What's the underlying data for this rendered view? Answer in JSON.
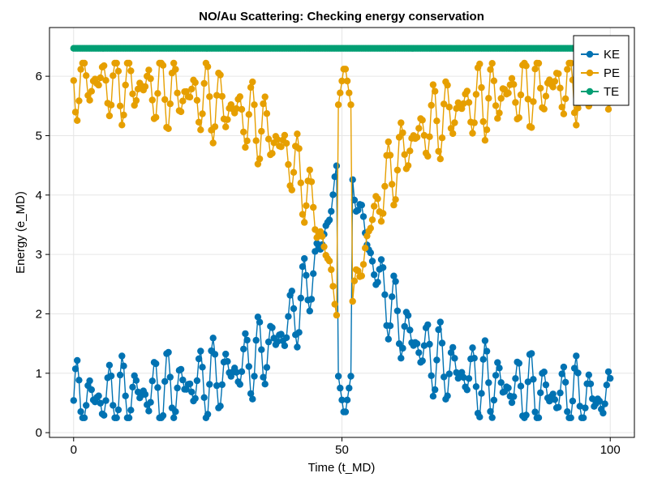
{
  "chart_data": {
    "type": "line",
    "title": "NO/Au Scattering: Checking energy conservation",
    "xlabel": "Time (t_MD)",
    "ylabel": "Energy (e_MD)",
    "xlim": [
      -4.5,
      104.5
    ],
    "ylim": [
      -0.08,
      6.82
    ],
    "xticks": [
      0,
      50,
      100
    ],
    "xtick_labels": [
      "0",
      "50",
      "100"
    ],
    "yticks": [
      0,
      1,
      2,
      3,
      4,
      5,
      6
    ],
    "ytick_labels": [
      "0",
      "1",
      "2",
      "3",
      "4",
      "5",
      "6"
    ],
    "grid": true,
    "legend_position": "top-right",
    "total_energy": 6.47,
    "x_start": 0,
    "x_end": 100,
    "n_points": 301,
    "collision_time": 50.5,
    "series": [
      {
        "name": "KE",
        "color": "#0072b2",
        "marker": "circle",
        "line": true
      },
      {
        "name": "PE",
        "color": "#e69f00",
        "marker": "circle",
        "line": true
      },
      {
        "name": "TE",
        "color": "#009e73",
        "marker": "circle",
        "line": true
      }
    ]
  }
}
